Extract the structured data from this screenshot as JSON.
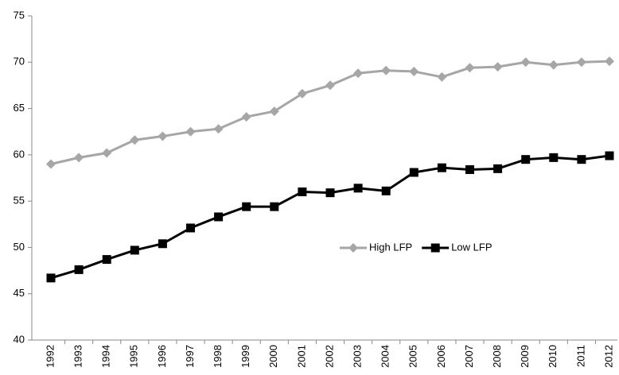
{
  "chart_data": {
    "type": "line",
    "categories": [
      "1992",
      "1993",
      "1994",
      "1995",
      "1996",
      "1997",
      "1998",
      "1999",
      "2000",
      "2001",
      "2002",
      "2003",
      "2004",
      "2005",
      "2006",
      "2007",
      "2008",
      "2009",
      "2010",
      "2011",
      "2012"
    ],
    "series": [
      {
        "name": "High LFP",
        "color": "#a6a6a6",
        "marker": "diamond",
        "values": [
          59.0,
          59.7,
          60.2,
          61.6,
          62.0,
          62.5,
          62.8,
          64.1,
          64.7,
          66.6,
          67.5,
          68.8,
          69.1,
          69.0,
          68.4,
          69.4,
          69.5,
          70.0,
          69.7,
          70.0,
          70.1
        ]
      },
      {
        "name": "Low LFP",
        "color": "#000000",
        "marker": "square",
        "values": [
          46.7,
          47.6,
          48.7,
          49.7,
          50.4,
          52.1,
          53.3,
          54.4,
          54.4,
          56.0,
          55.9,
          56.4,
          56.1,
          58.1,
          58.6,
          58.4,
          58.5,
          59.5,
          59.7,
          59.5,
          59.9
        ]
      }
    ],
    "ylim": [
      40,
      75
    ],
    "yticks": [
      40,
      45,
      50,
      55,
      60,
      65,
      70,
      75
    ],
    "grid": false
  }
}
